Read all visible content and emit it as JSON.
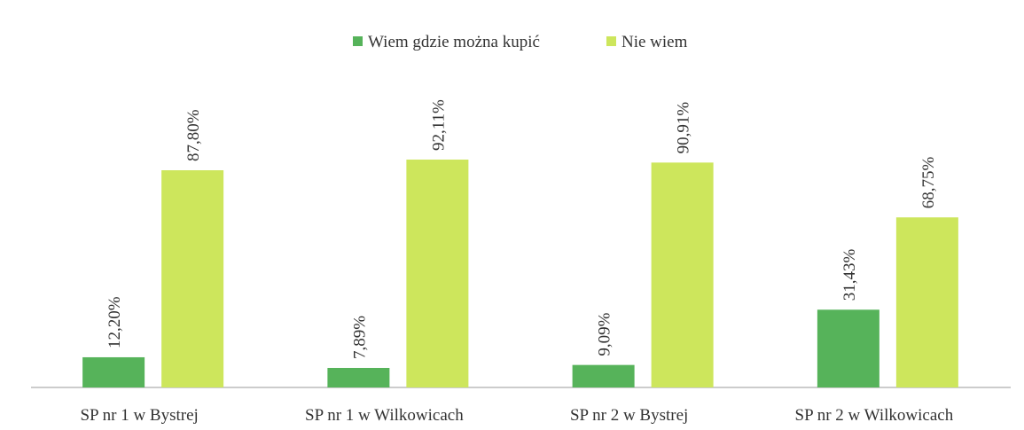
{
  "chart_data": {
    "type": "bar",
    "categories": [
      "SP nr 1 w Bystrej",
      "SP nr 1 w Wilkowicach",
      "SP nr 2 w Bystrej",
      "SP nr 2 w Wilkowicach"
    ],
    "series": [
      {
        "name": "Wiem gdzie można kupić",
        "color": "#56b35a",
        "values": [
          12.2,
          7.89,
          9.09,
          31.43
        ],
        "value_labels": [
          "12,20%",
          "7,89%",
          "9,09%",
          "31,43%"
        ]
      },
      {
        "name": "Nie wiem",
        "color": "#cde65c",
        "values": [
          87.8,
          92.11,
          90.91,
          68.75
        ],
        "value_labels": [
          "87,80%",
          "92,11%",
          "90,91%",
          "68,75%"
        ]
      }
    ],
    "legend": "top"
  }
}
